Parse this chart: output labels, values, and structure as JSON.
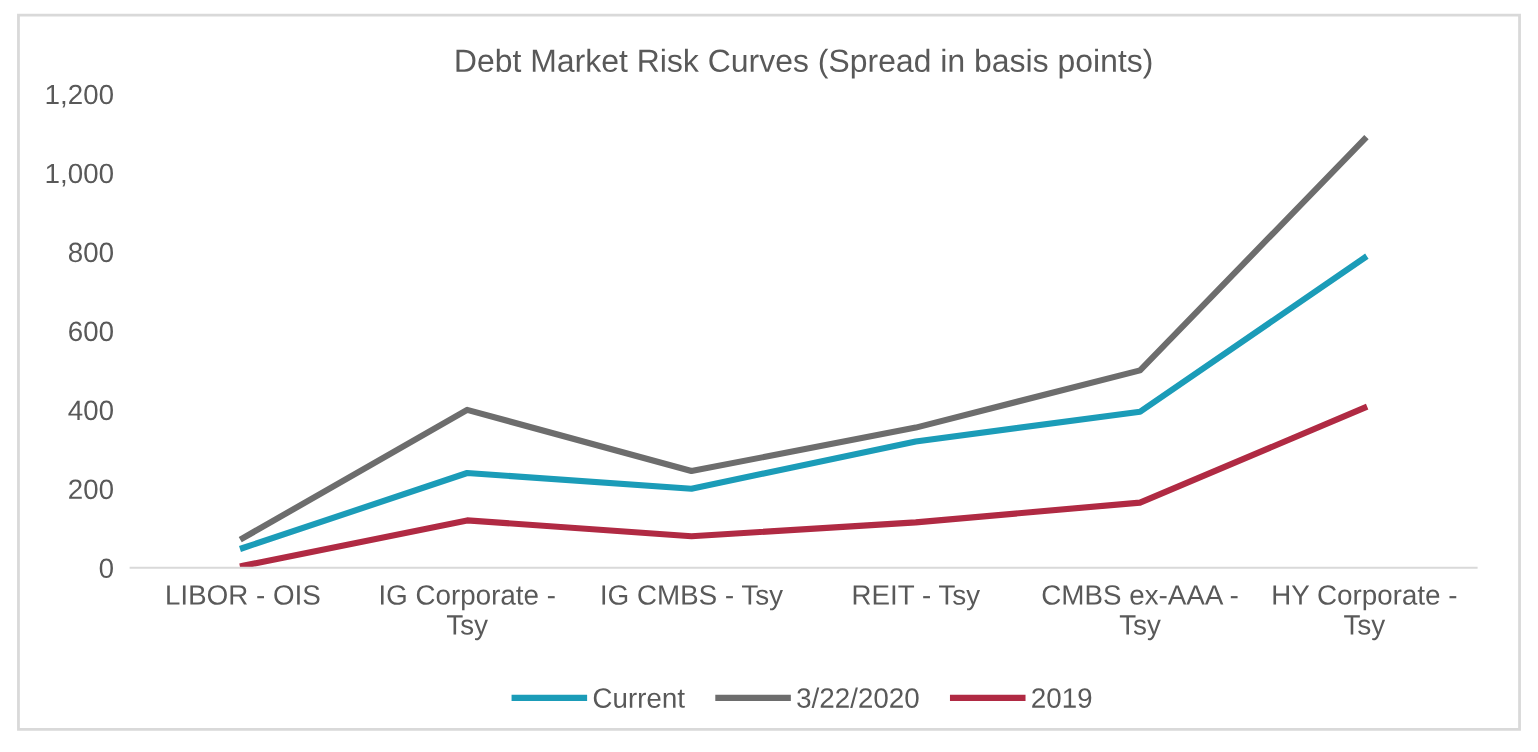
{
  "chart_data": {
    "type": "line",
    "title": "Debt Market Risk Curves (Spread in basis points)",
    "categories": [
      "LIBOR - OIS",
      "IG Corporate - Tsy",
      "IG CMBS - Tsy",
      "REIT - Tsy",
      "CMBS ex-AAA - Tsy",
      "HY Corporate - Tsy"
    ],
    "series": [
      {
        "name": "Current",
        "color": "#1b9cb8",
        "values": [
          50,
          240,
          200,
          320,
          395,
          785
        ]
      },
      {
        "name": "3/22/2020",
        "color": "#6d6d6d",
        "values": [
          75,
          400,
          245,
          355,
          500,
          1085
        ]
      },
      {
        "name": "2019",
        "color": "#b02a43",
        "values": [
          5,
          120,
          80,
          115,
          165,
          405
        ]
      }
    ],
    "ylim": [
      0,
      1200
    ],
    "yticks": [
      {
        "value": 0,
        "label": "0"
      },
      {
        "value": 200,
        "label": "200"
      },
      {
        "value": 400,
        "label": "400"
      },
      {
        "value": 600,
        "label": "600"
      },
      {
        "value": 800,
        "label": "800"
      },
      {
        "value": 1000,
        "label": "1,000"
      },
      {
        "value": 1200,
        "label": "1,200"
      }
    ],
    "grid": false,
    "legend": "bottom",
    "marker": "none",
    "line_style": "solid"
  }
}
